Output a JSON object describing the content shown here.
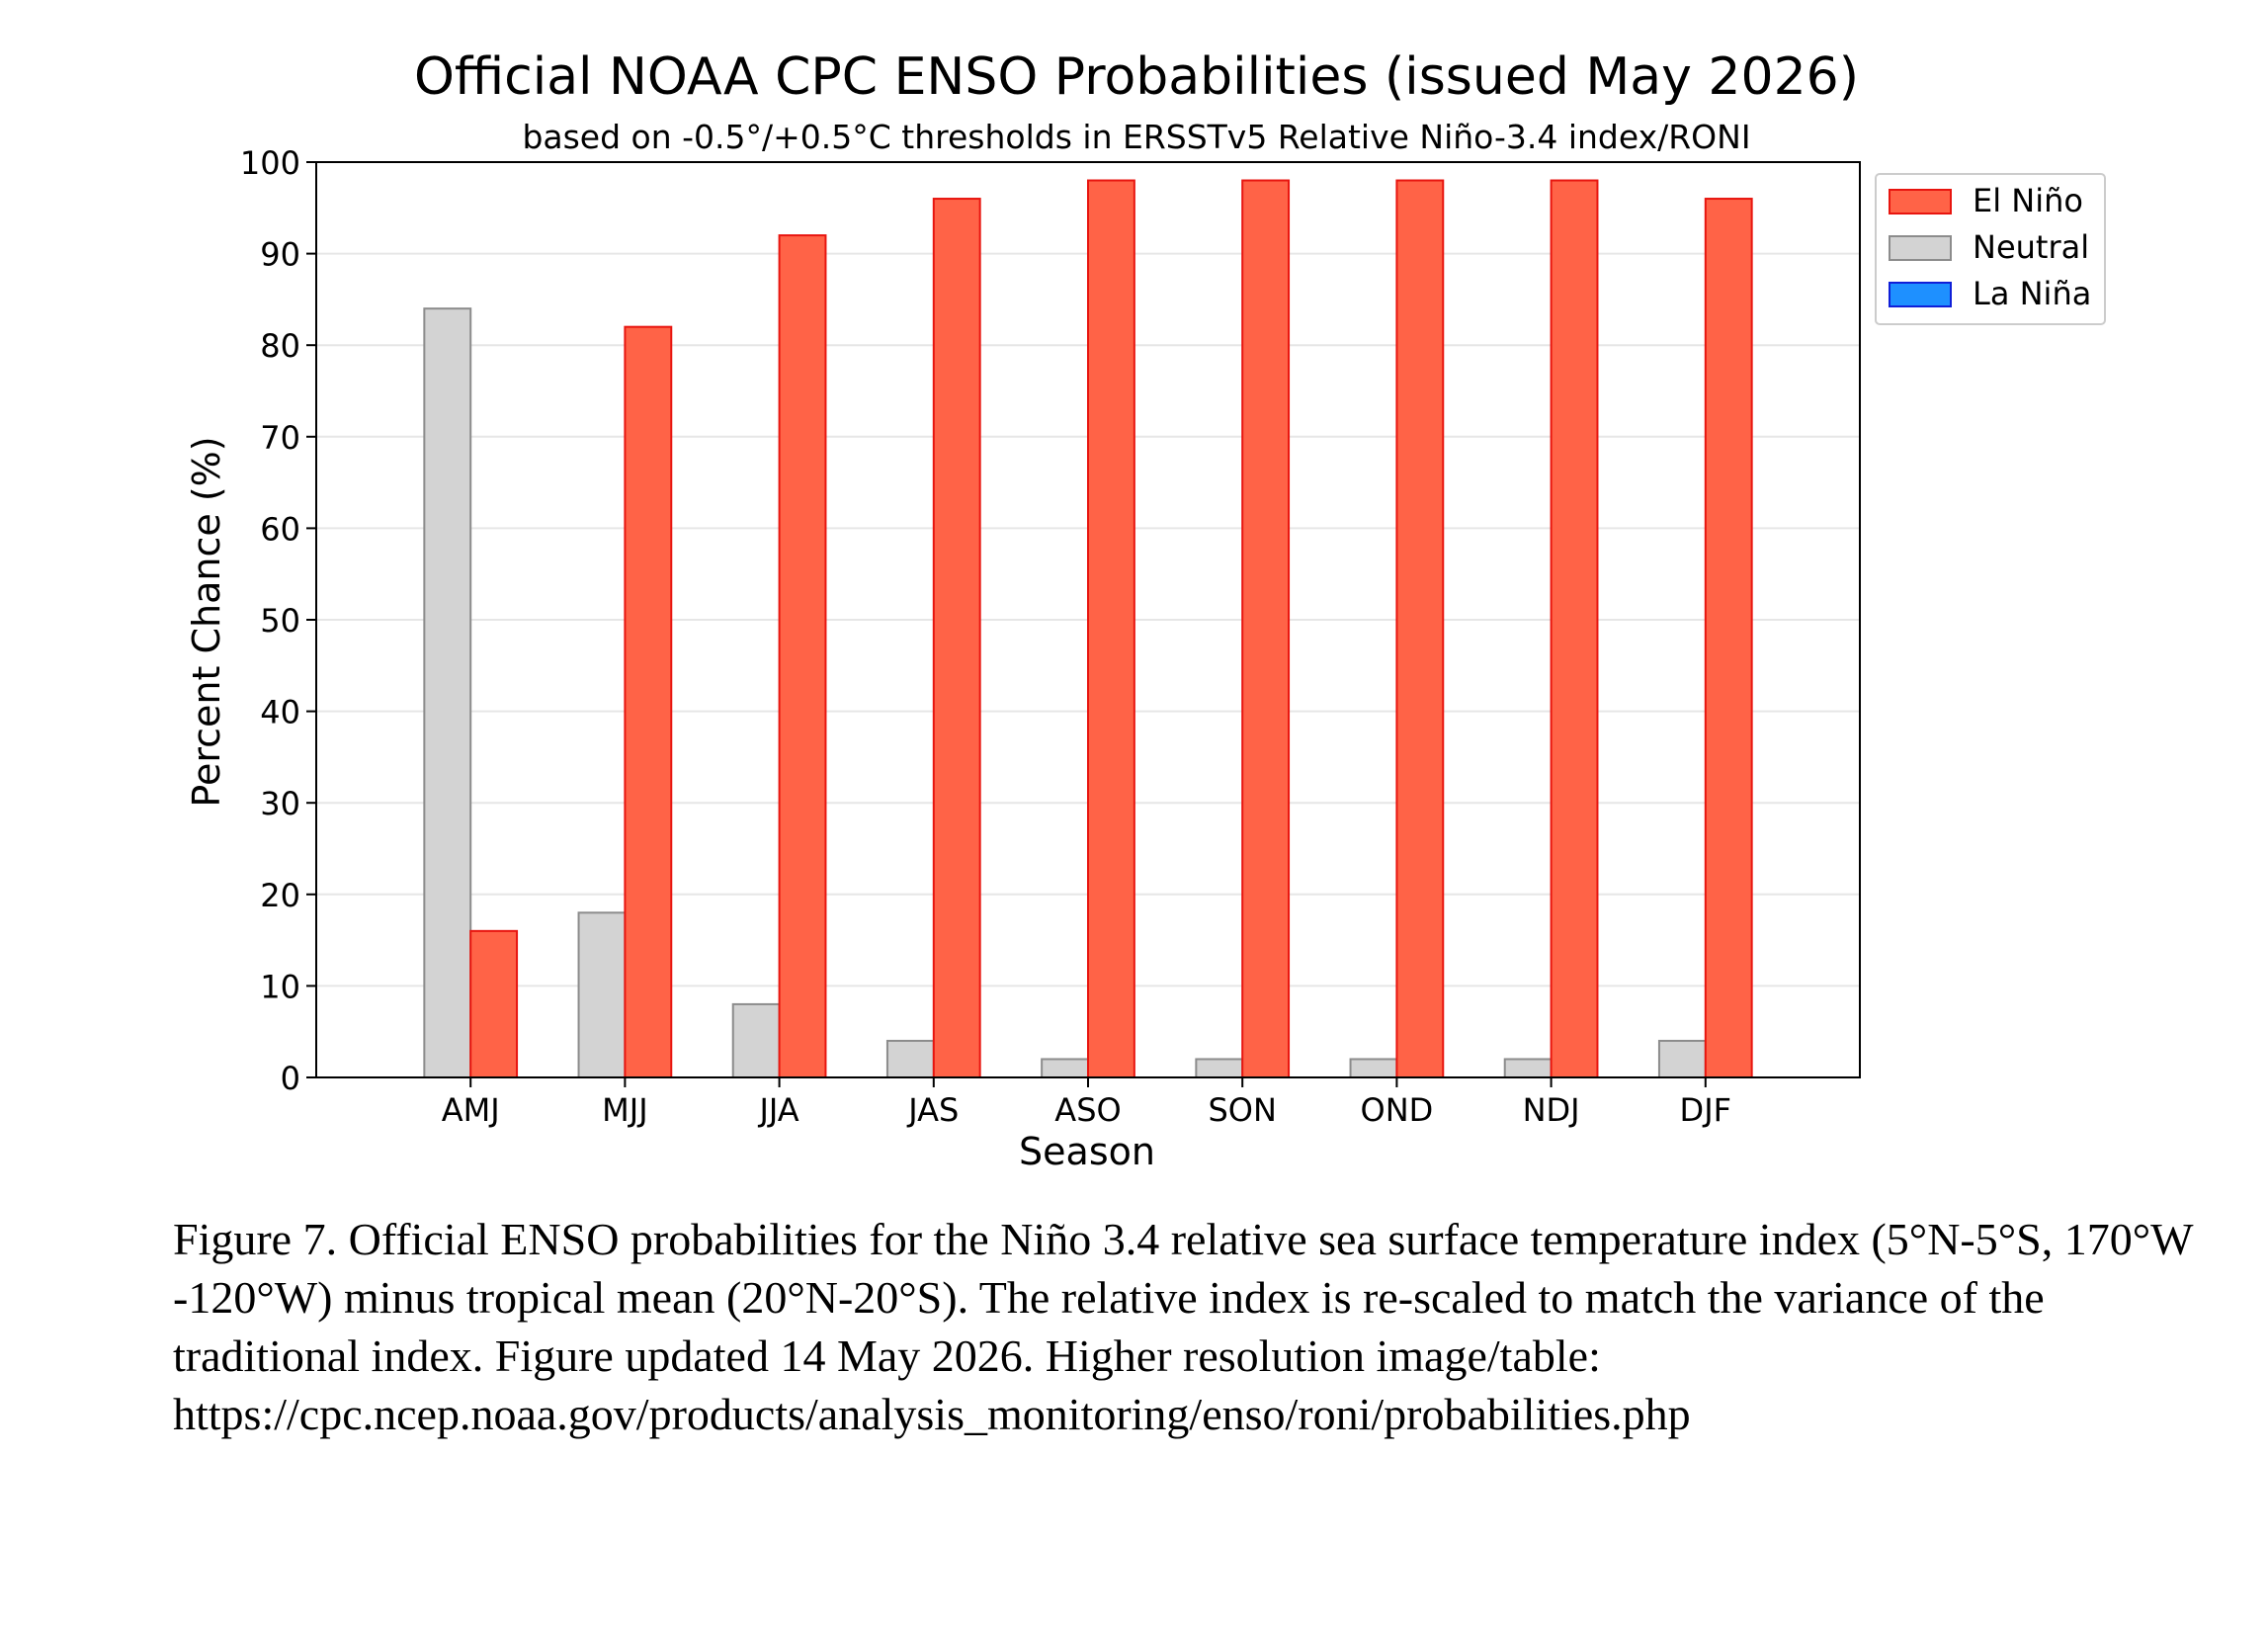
{
  "chart_data": {
    "type": "bar",
    "title": "Official NOAA CPC ENSO Probabilities (issued May 2026)",
    "subtitle": "based on -0.5°/+0.5°C thresholds in ERSSTv5 Relative Niño-3.4 index/RONI",
    "xlabel": "Season",
    "ylabel": "Percent Chance (%)",
    "ylim": [
      0,
      100
    ],
    "yticks": [
      0,
      10,
      20,
      30,
      40,
      50,
      60,
      70,
      80,
      90,
      100
    ],
    "grid": true,
    "legend_position": "upper-right-outside",
    "categories": [
      "AMJ",
      "MJJ",
      "JJA",
      "JAS",
      "ASO",
      "SON",
      "OND",
      "NDJ",
      "DJF"
    ],
    "series": [
      {
        "name": "El Niño",
        "color": "#ff6347",
        "edge": "#e8150f",
        "values": [
          16,
          82,
          92,
          96,
          98,
          98,
          98,
          98,
          96
        ]
      },
      {
        "name": "Neutral",
        "color": "#d3d3d3",
        "edge": "#8c8c8c",
        "values": [
          84,
          18,
          8,
          4,
          2,
          2,
          2,
          2,
          4
        ]
      },
      {
        "name": "La Niña",
        "color": "#1e90ff",
        "edge": "#0f1fd8",
        "values": [
          0,
          0,
          0,
          0,
          0,
          0,
          0,
          0,
          0
        ]
      }
    ]
  },
  "caption": "Figure 7. Official ENSO probabilities for the Niño 3.4 relative sea surface temperature index (5°N-5°S, 170°W -120°W) minus tropical mean (20°N-20°S). The relative index is re-scaled to match the variance of the traditional index. Figure updated 14 May 2026. Higher resolution image/table: https://cpc.ncep.noaa.gov/products/analysis_monitoring/enso/roni/probabilities.php"
}
